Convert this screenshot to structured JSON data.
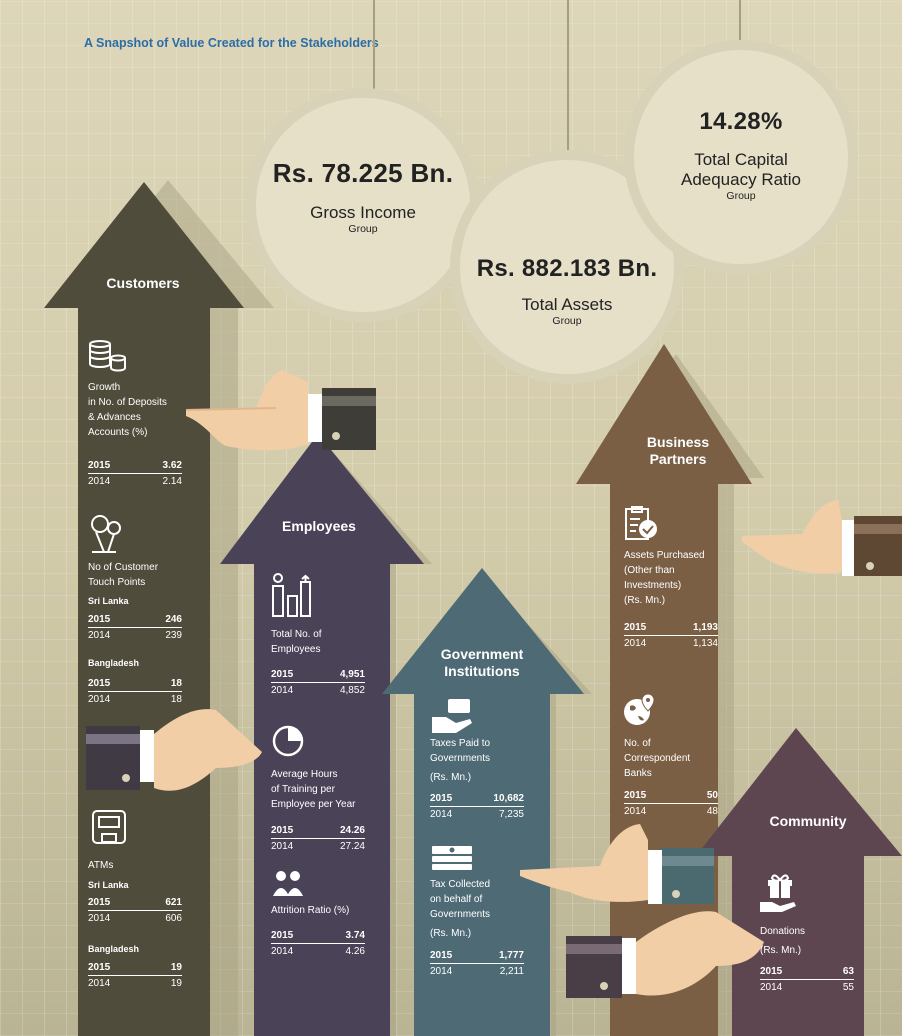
{
  "title": "A Snapshot of Value Created for the Stakeholders",
  "highlights": {
    "gross_income": {
      "value": "Rs. 78.225 Bn.",
      "label": "Gross Income",
      "sub": "Group"
    },
    "total_assets": {
      "value": "Rs. 882.183 Bn.",
      "label": "Total Assets",
      "sub": "Group"
    },
    "car": {
      "value": "14.28%",
      "label_1": "Total Capital",
      "label_2": "Adequacy Ratio",
      "sub": "Group"
    }
  },
  "customers": {
    "title": "Customers",
    "deposits": {
      "l1": "Growth",
      "l2": "in No. of Deposits",
      "l3": "& Advances",
      "l4": "Accounts (%)",
      "y1": "2015",
      "v1": "3.62",
      "y2": "2014",
      "v2": "2.14"
    },
    "touch": {
      "l1": "No of Customer",
      "l2": "Touch Points",
      "sl": "Sri Lanka",
      "sl_y1": "2015",
      "sl_v1": "246",
      "sl_y2": "2014",
      "sl_v2": "239",
      "bd": "Bangladesh",
      "bd_y1": "2015",
      "bd_v1": "18",
      "bd_y2": "2014",
      "bd_v2": "18"
    },
    "atms": {
      "l1": "ATMs",
      "sl": "Sri Lanka",
      "sl_y1": "2015",
      "sl_v1": "621",
      "sl_y2": "2014",
      "sl_v2": "606",
      "bd": "Bangladesh",
      "bd_y1": "2015",
      "bd_v1": "19",
      "bd_y2": "2014",
      "bd_v2": "19"
    }
  },
  "employees": {
    "title": "Employees",
    "total": {
      "l1": "Total No. of",
      "l2": "Employees",
      "y1": "2015",
      "v1": "4,951",
      "y2": "2014",
      "v2": "4,852"
    },
    "training": {
      "l1": "Average Hours",
      "l2": "of Training per",
      "l3": "Employee per Year",
      "y1": "2015",
      "v1": "24.26",
      "y2": "2014",
      "v2": "27.24"
    },
    "attrition": {
      "l1": "Attrition Ratio (%)",
      "y1": "2015",
      "v1": "3.74",
      "y2": "2014",
      "v2": "4.26"
    }
  },
  "government": {
    "title_1": "Government",
    "title_2": "Institutions",
    "taxes": {
      "l1": "Taxes Paid to",
      "l2": "Governments",
      "l3": "(Rs. Mn.)",
      "y1": "2015",
      "v1": "10,682",
      "y2": "2014",
      "v2": "7,235"
    },
    "collected": {
      "l1": "Tax Collected",
      "l2": "on behalf of",
      "l3": "Governments",
      "l4": "(Rs. Mn.)",
      "y1": "2015",
      "v1": "1,777",
      "y2": "2014",
      "v2": "2,211"
    }
  },
  "partners": {
    "title_1": "Business",
    "title_2": "Partners",
    "assets": {
      "l1": "Assets Purchased",
      "l2": "(Other than",
      "l3": "Investments)",
      "l4": "(Rs. Mn.)",
      "y1": "2015",
      "v1": "1,193",
      "y2": "2014",
      "v2": "1,134"
    },
    "banks": {
      "l1": "No. of",
      "l2": "Correspondent",
      "l3": "Banks",
      "y1": "2015",
      "v1": "50",
      "y2": "2014",
      "v2": "48"
    }
  },
  "community": {
    "title": "Community",
    "donations": {
      "l1": "Donations",
      "l2": "(Rs. Mn.)",
      "y1": "2015",
      "v1": "63",
      "y2": "2014",
      "v2": "55"
    }
  },
  "colors": {
    "customers": "#4f4c3b",
    "employees": "#4a4256",
    "government": "#4e6a74",
    "partners": "#7a5f45",
    "community": "#5e4650",
    "title": "#2c6da6"
  }
}
